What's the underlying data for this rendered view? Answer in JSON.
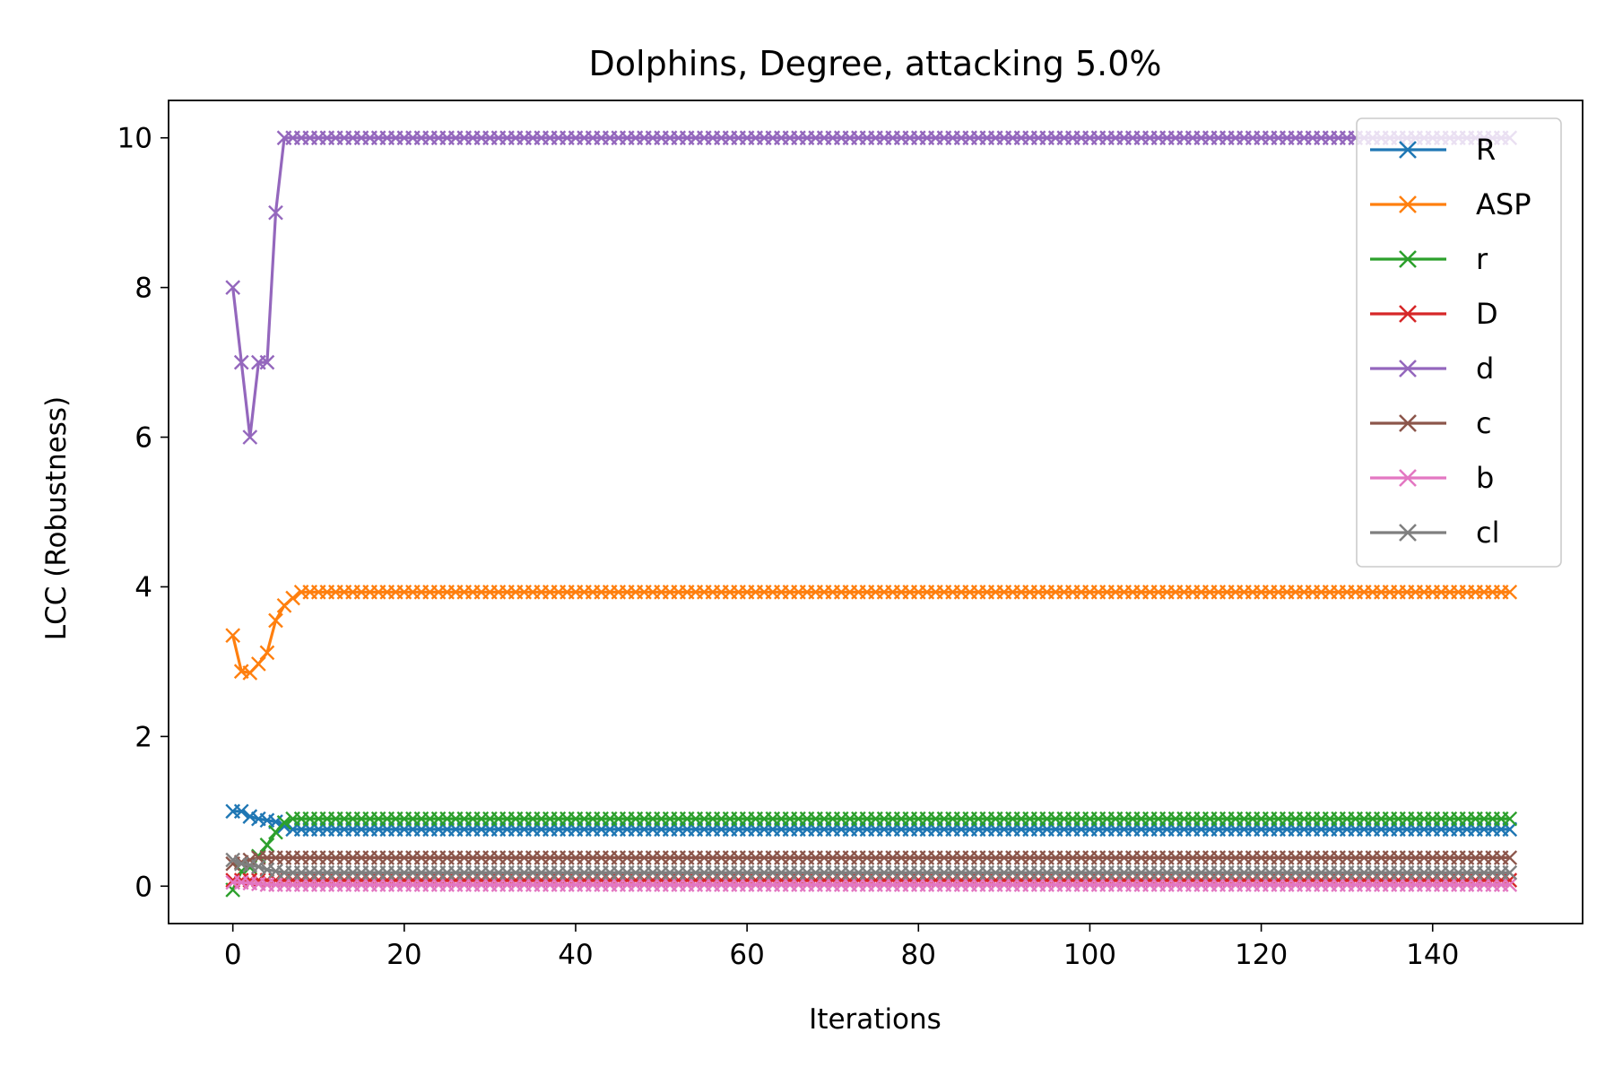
{
  "chart_data": {
    "type": "line",
    "title": "Dolphins, Degree, attacking 5.0%",
    "xlabel": "Iterations",
    "ylabel": "LCC (Robustness)",
    "xlim": [
      -7.5,
      157.5
    ],
    "ylim": [
      -0.5,
      10.5
    ],
    "xticks": [
      0,
      20,
      40,
      60,
      80,
      100,
      120,
      140
    ],
    "yticks": [
      0,
      2,
      4,
      6,
      8,
      10
    ],
    "grid": false,
    "legend": "top-right",
    "marker": "x",
    "n_points": 150,
    "series": [
      {
        "name": "R",
        "color": "#1f77b4",
        "initial": [
          1.0,
          1.0,
          0.93,
          0.9,
          0.88,
          0.86,
          0.8
        ],
        "steady": 0.76
      },
      {
        "name": "ASP",
        "color": "#ff7f0e",
        "initial": [
          3.35,
          2.87,
          2.85,
          2.97,
          3.12,
          3.55,
          3.75,
          3.85
        ],
        "steady": 3.93
      },
      {
        "name": "r",
        "color": "#2ca02c",
        "initial": [
          -0.05,
          0.2,
          0.25,
          0.4,
          0.55,
          0.72,
          0.85
        ],
        "steady": 0.9
      },
      {
        "name": "D",
        "color": "#d62728",
        "initial": [
          0.08,
          0.08,
          0.08
        ],
        "steady": 0.08
      },
      {
        "name": "d",
        "color": "#9467bd",
        "initial": [
          8,
          7,
          6,
          7,
          7,
          9,
          10
        ],
        "steady": 10
      },
      {
        "name": "c",
        "color": "#8c564b",
        "initial": [
          0.3,
          0.32,
          0.35,
          0.38,
          0.38
        ],
        "steady": 0.38
      },
      {
        "name": "b",
        "color": "#e377c2",
        "initial": [
          0.05,
          0.05,
          0.04,
          0.03,
          0.02
        ],
        "steady": 0.02
      },
      {
        "name": "cl",
        "color": "#7f7f7f",
        "initial": [
          0.35,
          0.3,
          0.28,
          0.26,
          0.22,
          0.2
        ],
        "steady": 0.18
      }
    ]
  }
}
